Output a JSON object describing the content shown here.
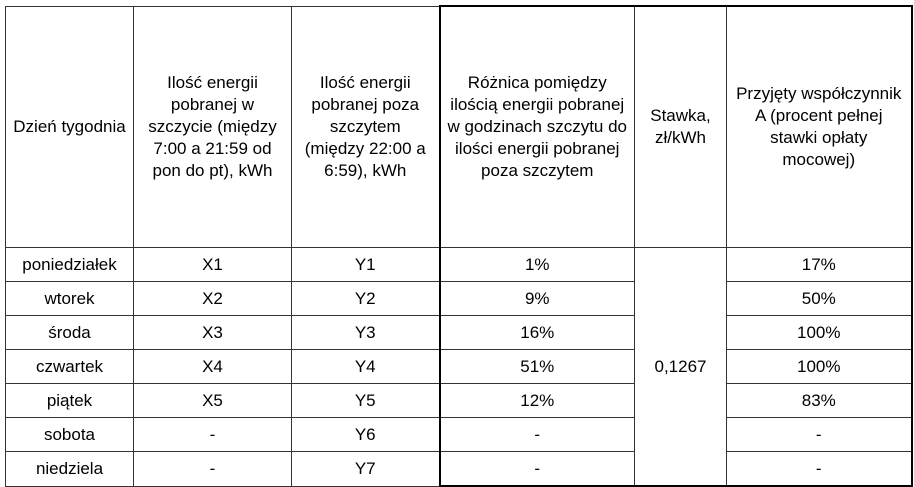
{
  "table": {
    "headers": [
      "Dzień tygodnia",
      "Ilość energii pobranej w szczycie (między 7:00 a 21:59 od pon do pt), kWh",
      "Ilość energii pobranej poza szczytem (między 22:00 a 6:59), kWh",
      "Różnica pomiędzy ilością energii pobranej w godzinach szczytu do ilości energii pobranej poza szczytem",
      "Stawka, zł/kWh",
      "Przyjęty współczynnik A (procent pełnej stawki opłaty mocowej)"
    ],
    "rows": [
      [
        "poniedziałek",
        "X1",
        "Y1",
        "1%",
        "17%"
      ],
      [
        "wtorek",
        "X2",
        "Y2",
        "9%",
        "50%"
      ],
      [
        "środa",
        "X3",
        "Y3",
        "16%",
        "100%"
      ],
      [
        "czwartek",
        "X4",
        "Y4",
        "51%",
        "100%"
      ],
      [
        "piątek",
        "X5",
        "Y5",
        "12%",
        "83%"
      ],
      [
        "sobota",
        "-",
        "Y6",
        "-",
        "-"
      ],
      [
        "niedziela",
        "-",
        "Y7",
        "-",
        "-"
      ]
    ],
    "rate": "0,1267"
  }
}
